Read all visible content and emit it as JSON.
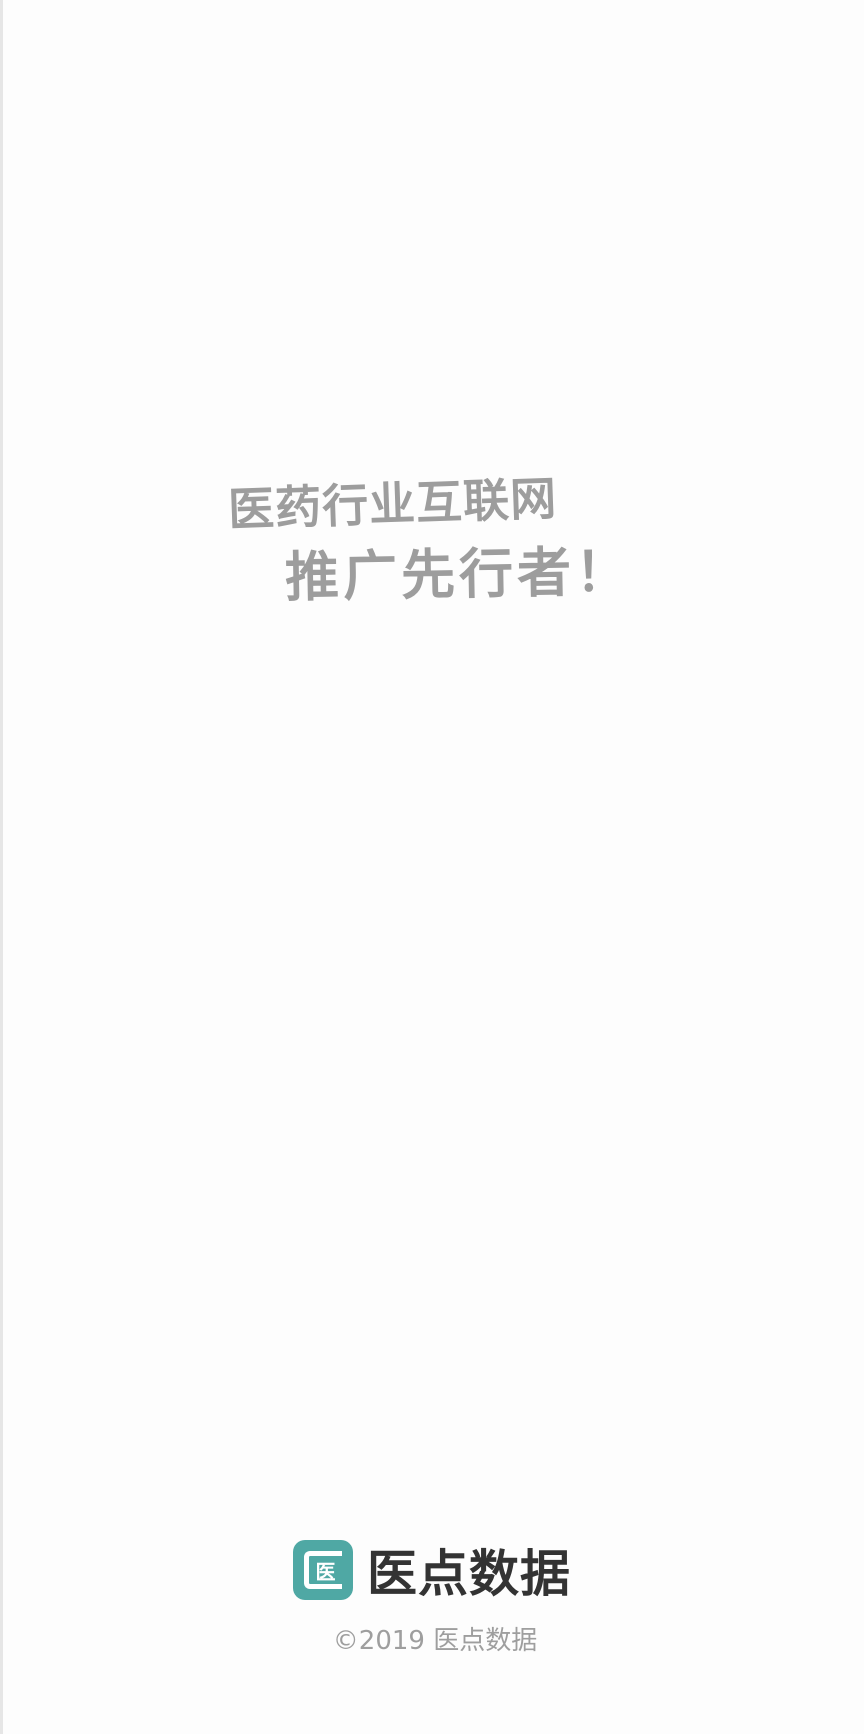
{
  "slogan": {
    "line1": "医药行业互联网",
    "line2": "推广先行者！"
  },
  "brand": {
    "logo_glyph": "医",
    "name": "医点数据",
    "logo_color": "#4fa8a4"
  },
  "footer": {
    "copyright": "©2019 医点数据"
  }
}
